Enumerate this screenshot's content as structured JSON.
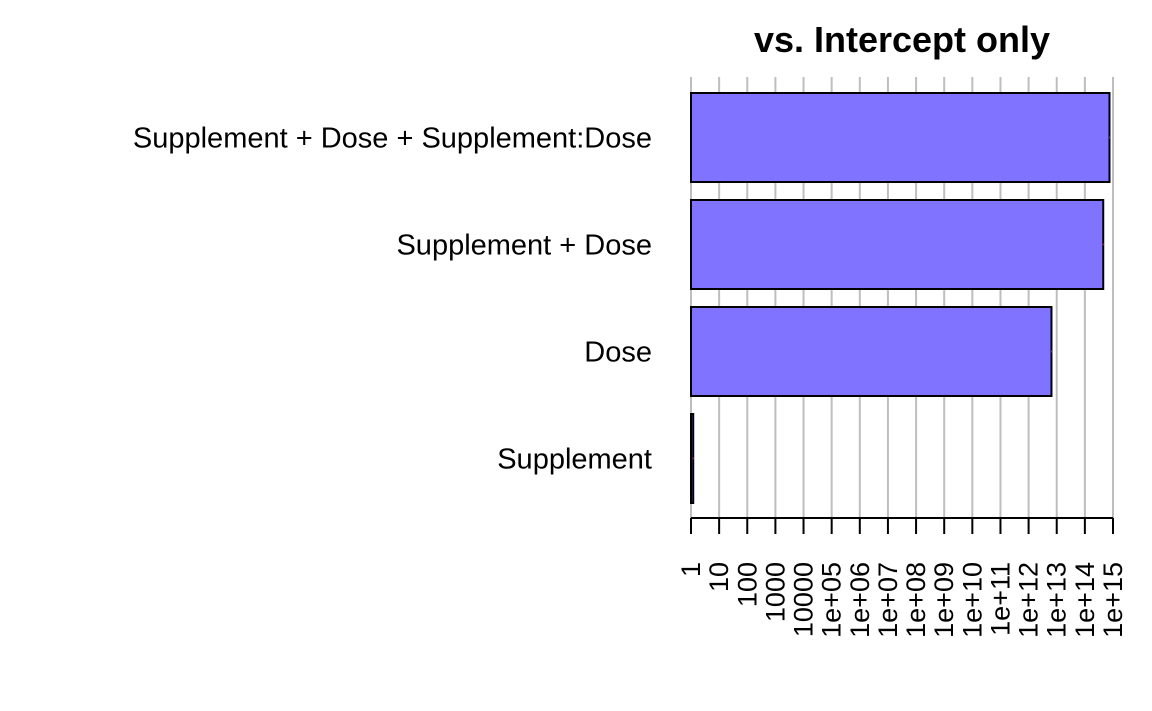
{
  "chart_data": {
    "type": "bar",
    "orientation": "horizontal",
    "title": "vs. Intercept only",
    "xscale": "log10",
    "xlim": [
      1,
      1000000000000000.0
    ],
    "grid": true,
    "categories": [
      "Supplement + Dose + Supplement:Dose",
      "Supplement + Dose",
      "Dose",
      "Supplement"
    ],
    "values": [
      750000000000000.0,
      450000000000000.0,
      6500000000000.0,
      1.2
    ],
    "tick_labels": [
      "1",
      "10",
      "100",
      "1000",
      "10000",
      "1e+05",
      "1e+06",
      "1e+07",
      "1e+08",
      "1e+09",
      "1e+10",
      "1e+11",
      "1e+12",
      "1e+13",
      "1e+14",
      "1e+15"
    ],
    "colors": {
      "bar_fill": "#8073ff",
      "bar_stroke": "#000000",
      "grid": "#bebebe",
      "error_mark": "#ff0000"
    }
  }
}
